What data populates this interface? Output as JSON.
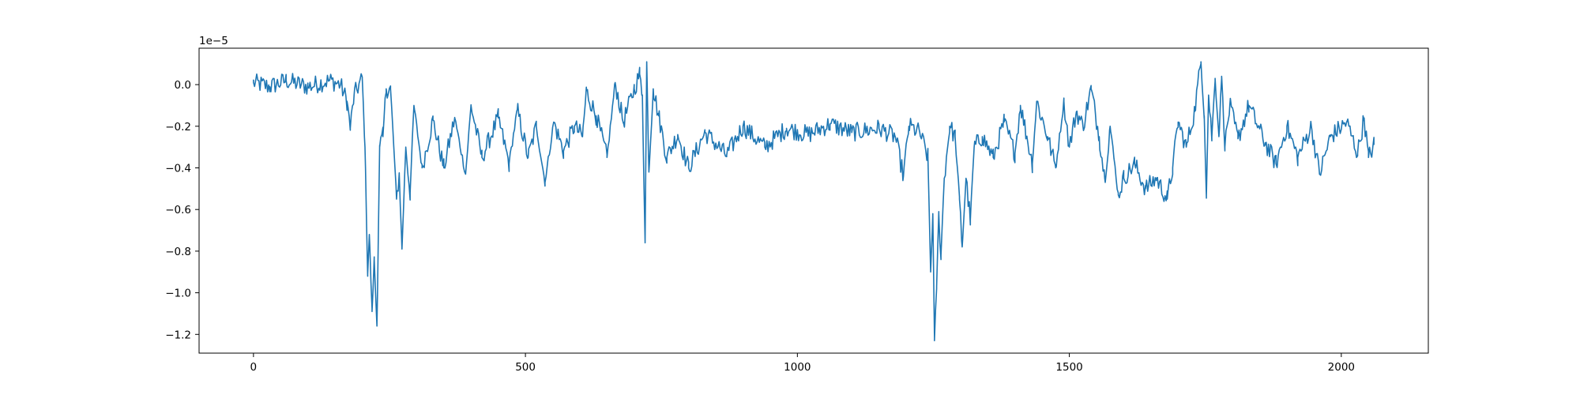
{
  "chart_data": {
    "type": "line",
    "title": "",
    "xlabel": "",
    "ylabel": "",
    "y_offset_label": "1e−5",
    "xlim": [
      -100,
      2160
    ],
    "ylim": [
      -1.29,
      0.175
    ],
    "x_ticks": [
      0,
      500,
      1000,
      1500,
      2000
    ],
    "x_tick_labels": [
      "0",
      "500",
      "1000",
      "1500",
      "2000"
    ],
    "y_ticks": [
      0.0,
      -0.2,
      -0.4,
      -0.6,
      -0.8,
      -1.0,
      -1.2
    ],
    "y_tick_labels": [
      "0.0",
      "−0.2",
      "−0.4",
      "−0.6",
      "−0.8",
      "−1.0",
      "−1.2"
    ],
    "grid": false,
    "legend": "none",
    "series": [
      {
        "color": "#1f77b4",
        "x_start": 0,
        "x_end": 2060,
        "keypoints": [
          [
            0,
            0.01
          ],
          [
            30,
            -0.01
          ],
          [
            60,
            0.02
          ],
          [
            100,
            -0.01
          ],
          [
            140,
            0.02
          ],
          [
            160,
            0.0
          ],
          [
            172,
            -0.08
          ],
          [
            178,
            -0.21
          ],
          [
            185,
            -0.05
          ],
          [
            200,
            0.03
          ],
          [
            205,
            -0.3
          ],
          [
            210,
            -0.91
          ],
          [
            213,
            -0.72
          ],
          [
            218,
            -1.09
          ],
          [
            222,
            -0.84
          ],
          [
            227,
            -1.16
          ],
          [
            232,
            -0.3
          ],
          [
            238,
            -0.25
          ],
          [
            244,
            -0.02
          ],
          [
            252,
            -0.02
          ],
          [
            258,
            -0.3
          ],
          [
            263,
            -0.55
          ],
          [
            268,
            -0.43
          ],
          [
            273,
            -0.79
          ],
          [
            280,
            -0.3
          ],
          [
            288,
            -0.52
          ],
          [
            295,
            -0.1
          ],
          [
            310,
            -0.4
          ],
          [
            330,
            -0.17
          ],
          [
            350,
            -0.4
          ],
          [
            370,
            -0.16
          ],
          [
            390,
            -0.43
          ],
          [
            400,
            -0.1
          ],
          [
            420,
            -0.35
          ],
          [
            450,
            -0.16
          ],
          [
            470,
            -0.38
          ],
          [
            485,
            -0.12
          ],
          [
            505,
            -0.35
          ],
          [
            520,
            -0.2
          ],
          [
            536,
            -0.47
          ],
          [
            552,
            -0.18
          ],
          [
            570,
            -0.32
          ],
          [
            590,
            -0.2
          ],
          [
            605,
            -0.25
          ],
          [
            612,
            -0.03
          ],
          [
            630,
            -0.15
          ],
          [
            650,
            -0.35
          ],
          [
            665,
            0.01
          ],
          [
            680,
            -0.18
          ],
          [
            700,
            -0.02
          ],
          [
            710,
            0.05
          ],
          [
            715,
            -0.05
          ],
          [
            720,
            -0.76
          ],
          [
            723,
            0.11
          ],
          [
            727,
            -0.42
          ],
          [
            735,
            -0.02
          ],
          [
            745,
            -0.15
          ],
          [
            760,
            -0.35
          ],
          [
            780,
            -0.24
          ],
          [
            800,
            -0.4
          ],
          [
            830,
            -0.23
          ],
          [
            870,
            -0.34
          ],
          [
            900,
            -0.2
          ],
          [
            940,
            -0.3
          ],
          [
            980,
            -0.21
          ],
          [
            1020,
            -0.24
          ],
          [
            1060,
            -0.19
          ],
          [
            1100,
            -0.23
          ],
          [
            1150,
            -0.21
          ],
          [
            1180,
            -0.25
          ],
          [
            1195,
            -0.44
          ],
          [
            1205,
            -0.2
          ],
          [
            1225,
            -0.23
          ],
          [
            1240,
            -0.35
          ],
          [
            1245,
            -0.9
          ],
          [
            1249,
            -0.62
          ],
          [
            1252,
            -1.23
          ],
          [
            1256,
            -0.97
          ],
          [
            1260,
            -0.62
          ],
          [
            1264,
            -0.82
          ],
          [
            1270,
            -0.45
          ],
          [
            1280,
            -0.2
          ],
          [
            1290,
            -0.25
          ],
          [
            1298,
            -0.55
          ],
          [
            1303,
            -0.78
          ],
          [
            1310,
            -0.45
          ],
          [
            1318,
            -0.65
          ],
          [
            1325,
            -0.3
          ],
          [
            1340,
            -0.25
          ],
          [
            1360,
            -0.35
          ],
          [
            1380,
            -0.18
          ],
          [
            1400,
            -0.33
          ],
          [
            1410,
            -0.1
          ],
          [
            1422,
            -0.25
          ],
          [
            1432,
            -0.38
          ],
          [
            1440,
            -0.08
          ],
          [
            1460,
            -0.25
          ],
          [
            1475,
            -0.4
          ],
          [
            1490,
            -0.08
          ],
          [
            1500,
            -0.3
          ],
          [
            1513,
            -0.13
          ],
          [
            1525,
            -0.2
          ],
          [
            1540,
            -0.02
          ],
          [
            1555,
            -0.25
          ],
          [
            1565,
            -0.45
          ],
          [
            1575,
            -0.2
          ],
          [
            1590,
            -0.53
          ],
          [
            1600,
            -0.45
          ],
          [
            1620,
            -0.38
          ],
          [
            1640,
            -0.5
          ],
          [
            1660,
            -0.45
          ],
          [
            1680,
            -0.55
          ],
          [
            1690,
            -0.4
          ],
          [
            1700,
            -0.18
          ],
          [
            1715,
            -0.3
          ],
          [
            1730,
            -0.13
          ],
          [
            1742,
            0.11
          ],
          [
            1748,
            -0.15
          ],
          [
            1752,
            -0.53
          ],
          [
            1756,
            -0.05
          ],
          [
            1762,
            -0.25
          ],
          [
            1768,
            0.03
          ],
          [
            1775,
            -0.25
          ],
          [
            1780,
            0.04
          ],
          [
            1786,
            -0.3
          ],
          [
            1795,
            -0.1
          ],
          [
            1810,
            -0.26
          ],
          [
            1830,
            -0.1
          ],
          [
            1860,
            -0.28
          ],
          [
            1880,
            -0.38
          ],
          [
            1900,
            -0.2
          ],
          [
            1920,
            -0.35
          ],
          [
            1945,
            -0.2
          ],
          [
            1960,
            -0.43
          ],
          [
            1980,
            -0.25
          ],
          [
            2010,
            -0.18
          ],
          [
            2030,
            -0.33
          ],
          [
            2042,
            -0.16
          ],
          [
            2050,
            -0.35
          ],
          [
            2060,
            -0.29
          ]
        ]
      }
    ]
  }
}
